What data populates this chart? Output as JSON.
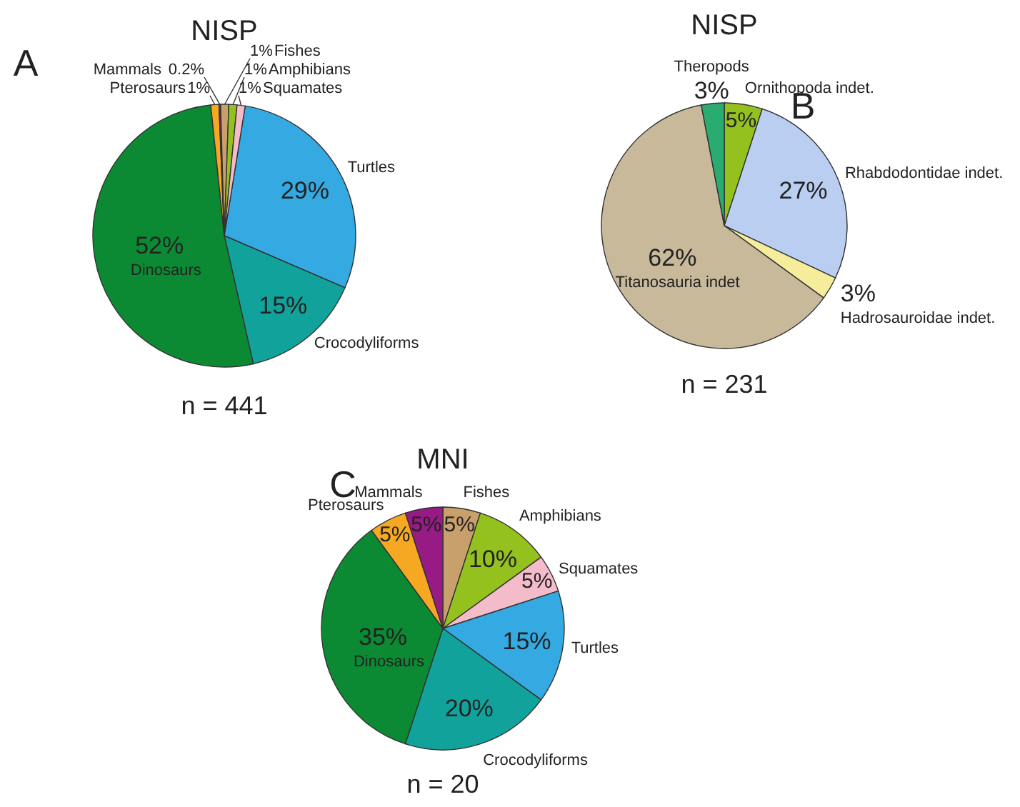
{
  "chart_data": [
    {
      "type": "pie",
      "title": "NISP",
      "categories": [
        "Turtles",
        "Crocodyliforms",
        "Dinosaurs",
        "Pterosaurs",
        "Mammals",
        "Fishes",
        "Amphibians",
        "Squamates"
      ],
      "values": [
        29,
        15,
        52,
        1,
        0.2,
        1,
        1,
        1
      ],
      "colors": [
        "#35a9e1",
        "#11a39b",
        "#0b8a33",
        "#f7a823",
        "#981a85",
        "#c8a06c",
        "#95c11f",
        "#f4bccb"
      ],
      "value_labels": [
        "29%",
        "15%",
        "52%",
        "1%",
        "0.2%",
        "1%",
        "1%",
        "1%"
      ],
      "annotations": [
        "A",
        "n = 441"
      ]
    },
    {
      "type": "pie",
      "title": "NISP",
      "categories": [
        "Ornithopoda indet.",
        "Rhabdodontidae indet.",
        "Hadrosauroidae indet.",
        "Titanosauria indet",
        "Theropods"
      ],
      "values": [
        5,
        27,
        3,
        62,
        3
      ],
      "colors": [
        "#95c11f",
        "#b9cef0",
        "#f5ec9c",
        "#c8b99a",
        "#2aab6f"
      ],
      "value_labels": [
        "5%",
        "27%",
        "3%",
        "62%",
        "3%"
      ],
      "annotations": [
        "B",
        "n = 231"
      ]
    },
    {
      "type": "pie",
      "title": "MNI",
      "categories": [
        "Fishes",
        "Amphibians",
        "Squamates",
        "Turtles",
        "Crocodyliforms",
        "Dinosaurs",
        "Pterosaurs",
        "Mammals"
      ],
      "values": [
        5,
        10,
        5,
        15,
        20,
        35,
        5,
        5
      ],
      "colors": [
        "#c8a06c",
        "#95c11f",
        "#f4bccb",
        "#35a9e1",
        "#11a39b",
        "#0b8a33",
        "#f7a823",
        "#981a85"
      ],
      "value_labels": [
        "5%",
        "10%",
        "5%",
        "15%",
        "20%",
        "35%",
        "5%",
        "5%"
      ],
      "annotations": [
        "C",
        "n = 20"
      ]
    }
  ]
}
